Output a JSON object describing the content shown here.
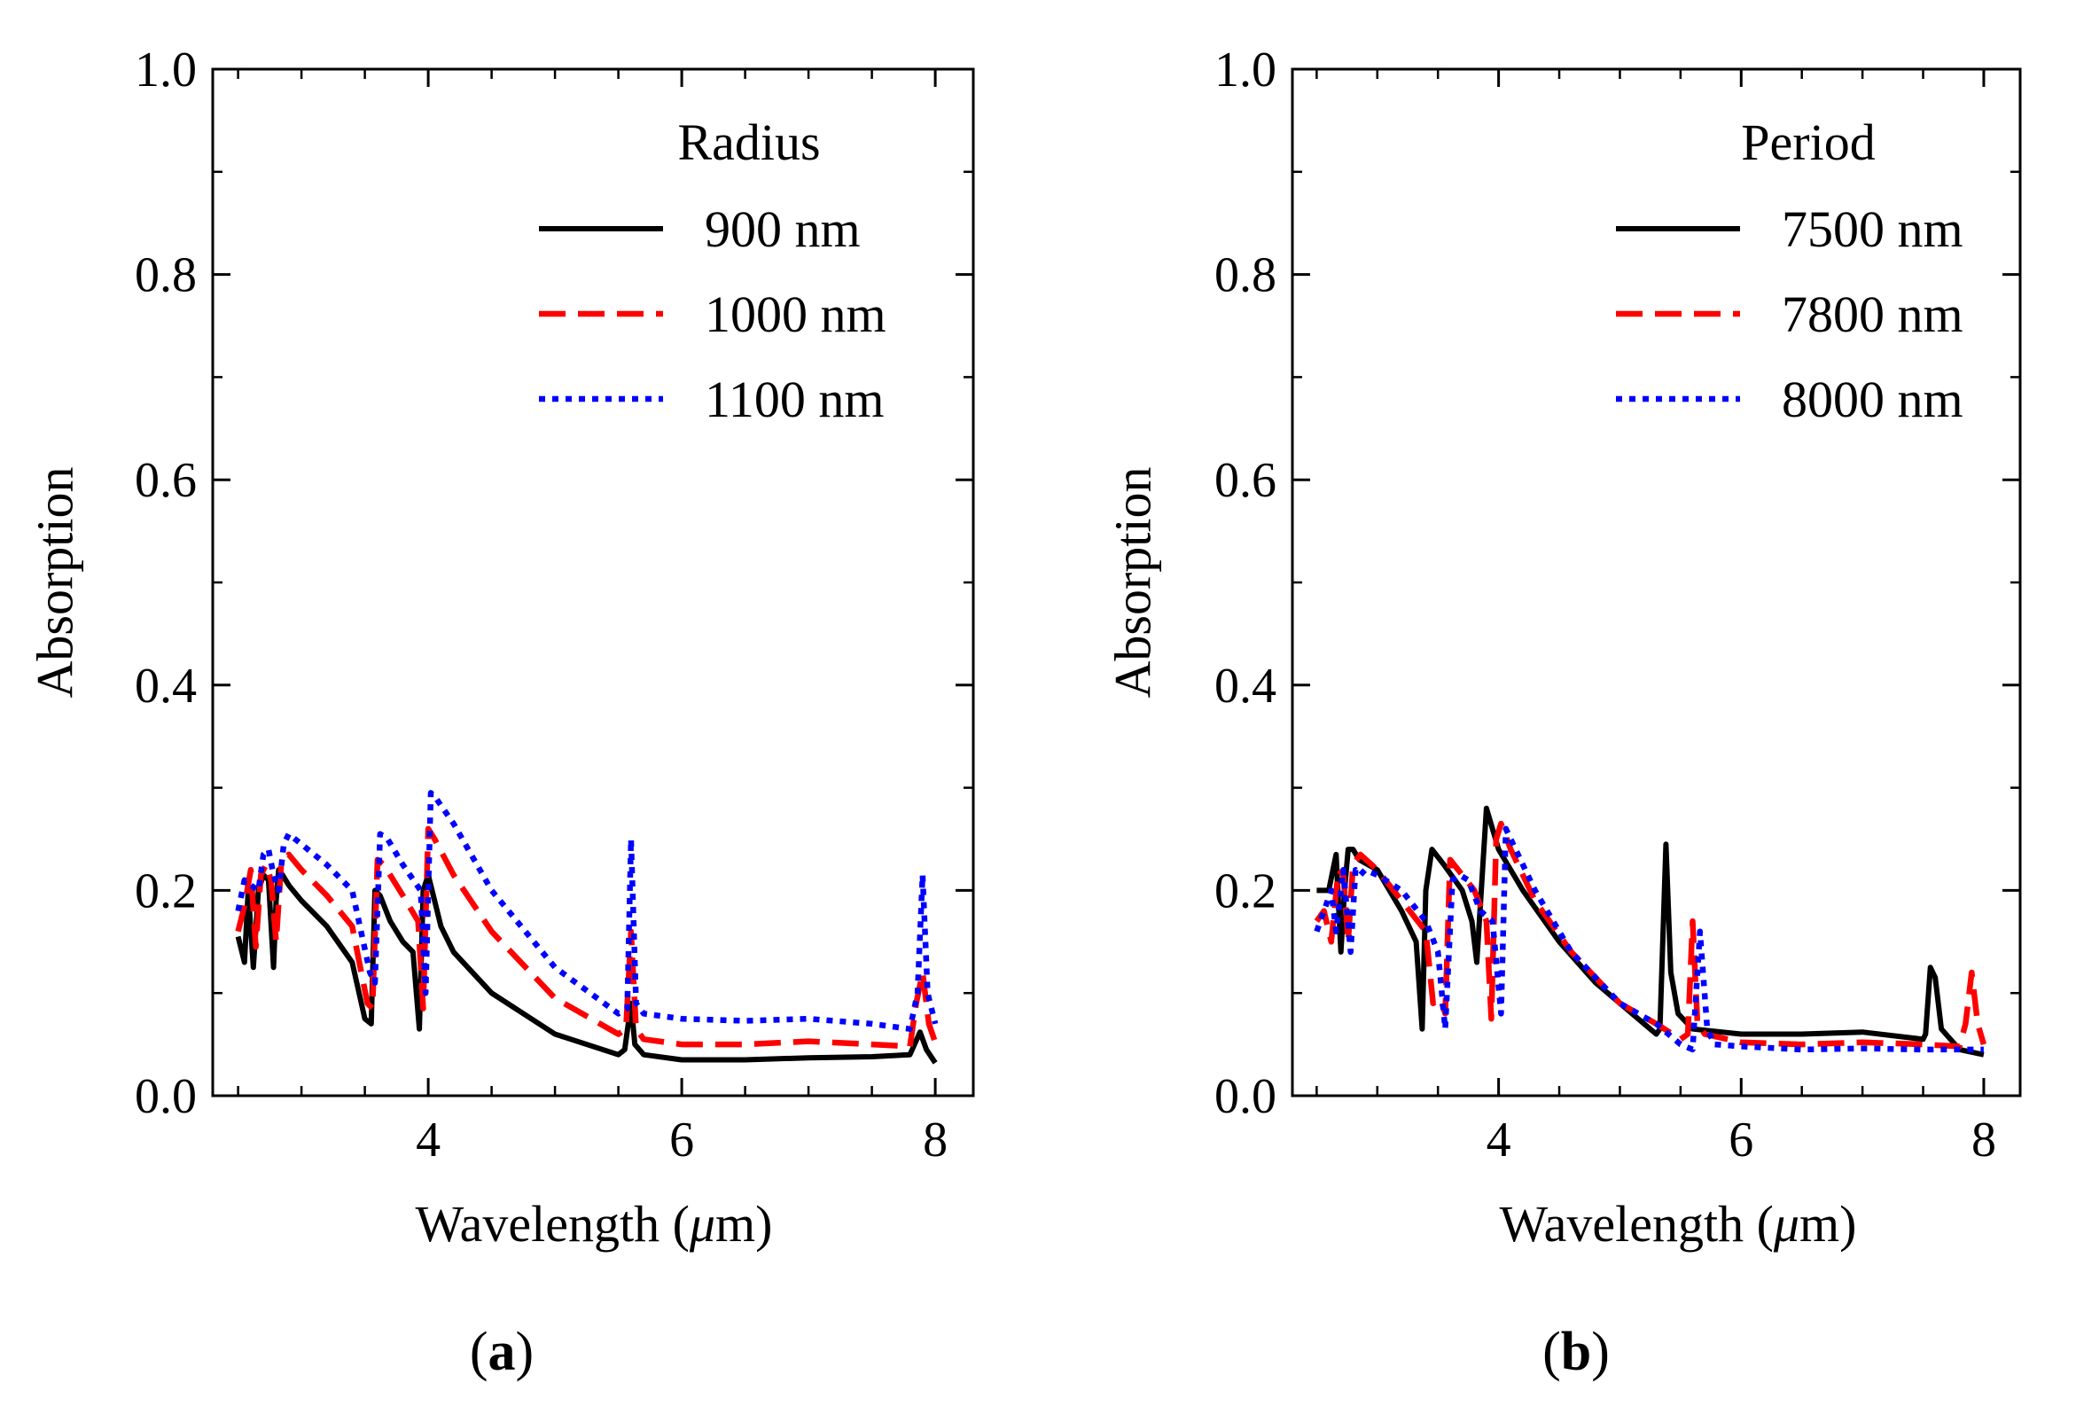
{
  "chart_data": [
    {
      "type": "line",
      "panel_label": "(a)",
      "panel_letter": "a",
      "xlabel": "Wavelength (μm)",
      "xlabel_prefix": "Wavelength (",
      "xlabel_mu": "μ",
      "xlabel_suffix": "m)",
      "ylabel": "Absorption",
      "xlim": [
        2.3,
        8.3
      ],
      "ylim": [
        0.0,
        1.0
      ],
      "xticks": [
        4,
        6,
        8
      ],
      "xtick_labels": [
        "4",
        "6",
        "8"
      ],
      "yticks": [
        0.0,
        0.2,
        0.4,
        0.6,
        0.8,
        1.0
      ],
      "ytick_labels": [
        "0.0",
        "0.2",
        "0.4",
        "0.6",
        "0.8",
        "1.0"
      ],
      "legend_title": "Radius",
      "legend_position": "top-right",
      "series": [
        {
          "name": "900 nm",
          "color": "#000000",
          "style": "solid",
          "x": [
            2.5,
            2.55,
            2.58,
            2.62,
            2.66,
            2.7,
            2.74,
            2.78,
            2.8,
            2.82,
            2.85,
            2.9,
            3.0,
            3.2,
            3.4,
            3.5,
            3.55,
            3.58,
            3.62,
            3.7,
            3.8,
            3.88,
            3.93,
            3.96,
            4.0,
            4.05,
            4.1,
            4.2,
            4.5,
            5.0,
            5.5,
            5.55,
            5.6,
            5.63,
            5.7,
            6.0,
            6.5,
            7.0,
            7.5,
            7.8,
            7.88,
            7.93,
            8.0
          ],
          "y": [
            0.155,
            0.13,
            0.2,
            0.125,
            0.2,
            0.215,
            0.21,
            0.125,
            0.19,
            0.22,
            0.215,
            0.205,
            0.19,
            0.165,
            0.13,
            0.075,
            0.07,
            0.2,
            0.195,
            0.17,
            0.15,
            0.14,
            0.065,
            0.2,
            0.215,
            0.19,
            0.165,
            0.14,
            0.1,
            0.06,
            0.04,
            0.045,
            0.09,
            0.05,
            0.04,
            0.035,
            0.035,
            0.037,
            0.038,
            0.04,
            0.062,
            0.045,
            0.032
          ]
        },
        {
          "name": "1000 nm",
          "color": "#ff0000",
          "style": "dashed",
          "x": [
            2.5,
            2.55,
            2.6,
            2.64,
            2.68,
            2.72,
            2.76,
            2.8,
            2.84,
            2.9,
            3.0,
            3.2,
            3.4,
            3.52,
            3.56,
            3.6,
            3.65,
            3.8,
            3.92,
            3.96,
            4.0,
            4.05,
            4.2,
            4.5,
            5.0,
            5.5,
            5.56,
            5.6,
            5.64,
            5.7,
            6.0,
            6.5,
            7.0,
            7.5,
            7.8,
            7.85,
            7.9,
            7.95,
            8.0
          ],
          "y": [
            0.16,
            0.185,
            0.22,
            0.145,
            0.215,
            0.225,
            0.21,
            0.15,
            0.225,
            0.235,
            0.22,
            0.195,
            0.165,
            0.09,
            0.085,
            0.23,
            0.225,
            0.195,
            0.17,
            0.085,
            0.26,
            0.25,
            0.215,
            0.16,
            0.095,
            0.06,
            0.065,
            0.16,
            0.065,
            0.055,
            0.05,
            0.05,
            0.053,
            0.05,
            0.048,
            0.09,
            0.12,
            0.07,
            0.052
          ]
        },
        {
          "name": "1100 nm",
          "color": "#0000ff",
          "style": "dotted",
          "x": [
            2.5,
            2.55,
            2.6,
            2.66,
            2.7,
            2.74,
            2.78,
            2.82,
            2.86,
            2.9,
            3.0,
            3.2,
            3.4,
            3.54,
            3.58,
            3.62,
            3.68,
            3.8,
            3.94,
            3.98,
            4.02,
            4.06,
            4.2,
            4.5,
            5.0,
            5.5,
            5.57,
            5.6,
            5.64,
            5.7,
            6.0,
            6.5,
            7.0,
            7.5,
            7.8,
            7.86,
            7.9,
            7.94,
            8.0
          ],
          "y": [
            0.18,
            0.21,
            0.205,
            0.2,
            0.235,
            0.24,
            0.215,
            0.2,
            0.245,
            0.255,
            0.245,
            0.225,
            0.2,
            0.12,
            0.11,
            0.255,
            0.25,
            0.225,
            0.2,
            0.1,
            0.295,
            0.29,
            0.265,
            0.2,
            0.125,
            0.08,
            0.085,
            0.25,
            0.09,
            0.08,
            0.075,
            0.073,
            0.075,
            0.07,
            0.065,
            0.1,
            0.215,
            0.1,
            0.07
          ]
        }
      ]
    },
    {
      "type": "line",
      "panel_label": "(b)",
      "panel_letter": "b",
      "xlabel": "Wavelength (μm)",
      "xlabel_prefix": "Wavelength (",
      "xlabel_mu": "μ",
      "xlabel_suffix": "m)",
      "ylabel": "Absorption",
      "xlim": [
        2.3,
        8.3
      ],
      "ylim": [
        0.0,
        1.0
      ],
      "xticks": [
        4,
        6,
        8
      ],
      "xtick_labels": [
        "4",
        "6",
        "8"
      ],
      "yticks": [
        0.0,
        0.2,
        0.4,
        0.6,
        0.8,
        1.0
      ],
      "ytick_labels": [
        "0.0",
        "0.2",
        "0.4",
        "0.6",
        "0.8",
        "1.0"
      ],
      "legend_title": "Period",
      "legend_position": "top-right",
      "series": [
        {
          "name": "7500 nm",
          "color": "#000000",
          "style": "solid",
          "x": [
            2.5,
            2.6,
            2.66,
            2.7,
            2.73,
            2.76,
            2.8,
            2.85,
            3.0,
            3.2,
            3.32,
            3.37,
            3.4,
            3.45,
            3.55,
            3.7,
            3.78,
            3.82,
            3.9,
            4.0,
            4.2,
            4.5,
            4.8,
            5.0,
            5.2,
            5.3,
            5.33,
            5.38,
            5.42,
            5.48,
            5.6,
            6.0,
            6.5,
            7.0,
            7.5,
            7.52,
            7.56,
            7.6,
            7.65,
            7.8,
            8.0
          ],
          "y": [
            0.2,
            0.2,
            0.235,
            0.14,
            0.2,
            0.24,
            0.24,
            0.23,
            0.22,
            0.18,
            0.15,
            0.065,
            0.2,
            0.24,
            0.225,
            0.2,
            0.17,
            0.13,
            0.28,
            0.24,
            0.2,
            0.15,
            0.11,
            0.09,
            0.07,
            0.06,
            0.065,
            0.245,
            0.12,
            0.08,
            0.065,
            0.06,
            0.06,
            0.062,
            0.055,
            0.06,
            0.125,
            0.115,
            0.065,
            0.045,
            0.04
          ]
        },
        {
          "name": "7800 nm",
          "color": "#ff0000",
          "style": "dashed",
          "x": [
            2.5,
            2.56,
            2.62,
            2.68,
            2.72,
            2.76,
            2.8,
            2.86,
            3.0,
            3.2,
            3.4,
            3.46,
            3.52,
            3.56,
            3.6,
            3.7,
            3.8,
            3.9,
            3.94,
            3.98,
            4.02,
            4.1,
            4.3,
            4.6,
            5.0,
            5.3,
            5.5,
            5.56,
            5.6,
            5.64,
            5.7,
            6.0,
            6.5,
            7.0,
            7.5,
            7.8,
            7.85,
            7.9,
            7.95,
            8.0
          ],
          "y": [
            0.17,
            0.18,
            0.15,
            0.22,
            0.215,
            0.15,
            0.225,
            0.235,
            0.22,
            0.19,
            0.16,
            0.09,
            0.095,
            0.08,
            0.23,
            0.215,
            0.2,
            0.17,
            0.075,
            0.25,
            0.265,
            0.24,
            0.19,
            0.14,
            0.09,
            0.07,
            0.055,
            0.06,
            0.17,
            0.07,
            0.06,
            0.052,
            0.05,
            0.052,
            0.05,
            0.048,
            0.07,
            0.12,
            0.07,
            0.05
          ]
        },
        {
          "name": "8000 nm",
          "color": "#0000ff",
          "style": "dotted",
          "x": [
            2.5,
            2.56,
            2.62,
            2.66,
            2.72,
            2.78,
            2.82,
            2.86,
            2.9,
            3.0,
            3.2,
            3.4,
            3.5,
            3.56,
            3.62,
            3.68,
            3.75,
            3.85,
            3.95,
            4.02,
            4.06,
            4.1,
            4.3,
            4.6,
            5.0,
            5.3,
            5.5,
            5.6,
            5.66,
            5.72,
            5.78,
            6.0,
            6.5,
            7.0,
            7.5,
            7.8,
            8.0
          ],
          "y": [
            0.16,
            0.18,
            0.2,
            0.16,
            0.22,
            0.14,
            0.22,
            0.215,
            0.22,
            0.215,
            0.2,
            0.17,
            0.14,
            0.065,
            0.21,
            0.215,
            0.21,
            0.18,
            0.17,
            0.08,
            0.26,
            0.25,
            0.2,
            0.14,
            0.09,
            0.07,
            0.05,
            0.045,
            0.16,
            0.065,
            0.05,
            0.048,
            0.045,
            0.046,
            0.045,
            0.045,
            0.045
          ]
        }
      ]
    }
  ]
}
